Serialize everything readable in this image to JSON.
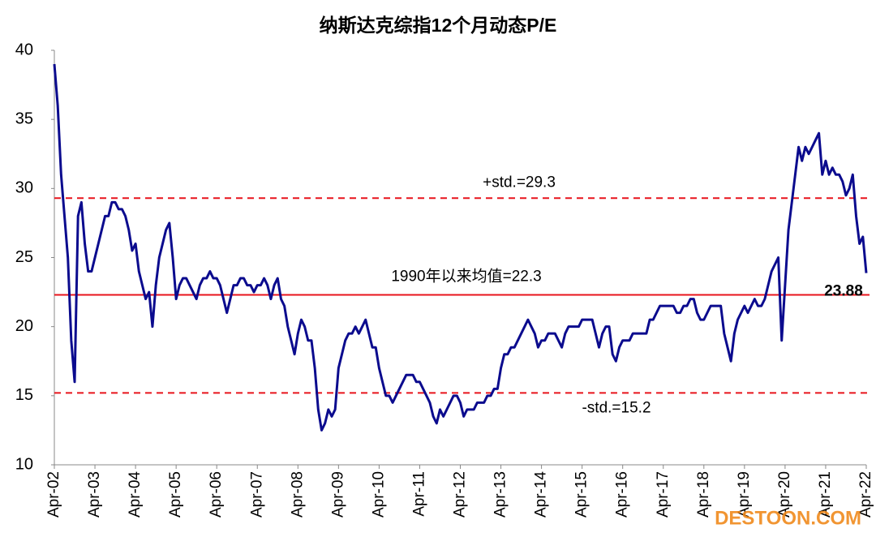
{
  "chart_data": {
    "type": "line",
    "title": "纳斯达克综指12个月动态P/E",
    "categories": [
      "Apr-02",
      null,
      null,
      null,
      null,
      null,
      null,
      null,
      null,
      null,
      null,
      null,
      "Apr-03",
      null,
      null,
      null,
      null,
      null,
      null,
      null,
      null,
      null,
      null,
      null,
      "Apr-04",
      null,
      null,
      null,
      null,
      null,
      null,
      null,
      null,
      null,
      null,
      null,
      "Apr-05",
      null,
      null,
      null,
      null,
      null,
      null,
      null,
      null,
      null,
      null,
      null,
      "Apr-06",
      null,
      null,
      null,
      null,
      null,
      null,
      null,
      null,
      null,
      null,
      null,
      "Apr-07",
      null,
      null,
      null,
      null,
      null,
      null,
      null,
      null,
      null,
      null,
      null,
      "Apr-08",
      null,
      null,
      null,
      null,
      null,
      null,
      null,
      null,
      null,
      null,
      null,
      "Apr-09",
      null,
      null,
      null,
      null,
      null,
      null,
      null,
      null,
      null,
      null,
      null,
      "Apr-10",
      null,
      null,
      null,
      null,
      null,
      null,
      null,
      null,
      null,
      null,
      null,
      "Apr-11",
      null,
      null,
      null,
      null,
      null,
      null,
      null,
      null,
      null,
      null,
      null,
      "Apr-12",
      null,
      null,
      null,
      null,
      null,
      null,
      null,
      null,
      null,
      null,
      null,
      "Apr-13",
      null,
      null,
      null,
      null,
      null,
      null,
      null,
      null,
      null,
      null,
      null,
      "Apr-14",
      null,
      null,
      null,
      null,
      null,
      null,
      null,
      null,
      null,
      null,
      null,
      "Apr-15",
      null,
      null,
      null,
      null,
      null,
      null,
      null,
      null,
      null,
      null,
      null,
      "Apr-16",
      null,
      null,
      null,
      null,
      null,
      null,
      null,
      null,
      null,
      null,
      null,
      "Apr-17",
      null,
      null,
      null,
      null,
      null,
      null,
      null,
      null,
      null,
      null,
      null,
      "Apr-18",
      null,
      null,
      null,
      null,
      null,
      null,
      null,
      null,
      null,
      null,
      null,
      "Apr-19",
      null,
      null,
      null,
      null,
      null,
      null,
      null,
      null,
      null,
      null,
      null,
      "Apr-20",
      null,
      null,
      null,
      null,
      null,
      null,
      null,
      null,
      null,
      null,
      null,
      "Apr-21",
      null,
      null,
      null,
      null,
      null,
      null,
      null,
      null,
      null,
      null,
      null,
      "Apr-22"
    ],
    "series": [
      {
        "name": "P/E",
        "color": "#0b0b8e",
        "values": [
          39,
          36,
          31,
          28,
          25,
          19,
          16,
          28,
          29,
          26,
          24,
          24,
          25,
          26,
          27,
          28,
          28,
          29,
          29,
          28.5,
          28.5,
          28,
          27,
          25.5,
          26,
          24,
          23,
          22,
          22.5,
          20,
          23,
          25,
          26,
          27,
          27.5,
          25,
          22,
          23,
          23.5,
          23.5,
          23,
          22.5,
          22,
          23,
          23.5,
          23.5,
          24,
          23.5,
          23.5,
          23,
          22,
          21,
          22,
          23,
          23,
          23.5,
          23.5,
          23,
          23,
          22.5,
          23,
          23,
          23.5,
          23,
          22,
          23,
          23.5,
          22,
          21.5,
          20,
          19,
          18,
          19.5,
          20.5,
          20,
          19,
          19,
          17,
          14,
          12.5,
          13,
          14,
          13.5,
          14,
          17,
          18,
          19,
          19.5,
          19.5,
          20,
          19.5,
          20,
          20.5,
          19.5,
          18.5,
          18.5,
          17,
          16,
          15,
          15,
          14.5,
          15,
          15.5,
          16,
          16.5,
          16.5,
          16.5,
          16,
          16,
          15.5,
          15,
          14.5,
          13.5,
          13,
          14,
          13.5,
          14,
          14.5,
          15,
          15,
          14.5,
          13.5,
          14,
          14,
          14,
          14.5,
          14.5,
          14.5,
          15,
          15,
          15.5,
          15.5,
          17,
          18,
          18,
          18.5,
          18.5,
          19,
          19.5,
          20,
          20.5,
          20,
          19.5,
          18.5,
          19,
          19,
          19.5,
          19.5,
          19.5,
          19,
          18.5,
          19.5,
          20,
          20,
          20,
          20,
          20.5,
          20.5,
          20.5,
          20.5,
          19.5,
          18.5,
          19.5,
          20,
          20,
          18,
          17.5,
          18.5,
          19,
          19,
          19,
          19.5,
          19.5,
          19.5,
          19.5,
          19.5,
          20.5,
          20.5,
          21,
          21.5,
          21.5,
          21.5,
          21.5,
          21.5,
          21,
          21,
          21.5,
          21.5,
          22,
          22,
          21,
          20.5,
          20.5,
          21,
          21.5,
          21.5,
          21.5,
          21.5,
          19.5,
          18.5,
          17.5,
          19.5,
          20.5,
          21,
          21.5,
          21,
          21.5,
          22,
          21.5,
          21.5,
          22,
          23,
          24,
          24.5,
          25,
          19,
          23,
          27,
          29,
          31,
          33,
          32,
          33,
          32.5,
          33,
          33.5,
          34,
          31,
          32,
          31,
          31.5,
          31,
          31,
          30.5,
          29.5,
          30,
          31,
          28,
          26,
          26.5,
          23.88
        ]
      }
    ],
    "reference_lines": [
      {
        "value": 29.3,
        "label": "+std.=29.3",
        "style": "dashed",
        "color": "#e8141c"
      },
      {
        "value": 22.3,
        "label": "1990年以来均值=22.3",
        "style": "solid",
        "color": "#e8141c"
      },
      {
        "value": 15.2,
        "label": "-std.=15.2",
        "style": "dashed",
        "color": "#e8141c"
      }
    ],
    "ylim": [
      10,
      40
    ],
    "yticks": [
      10,
      15,
      20,
      25,
      30,
      35,
      40
    ],
    "grid": false,
    "watermark": "DESTOON.COM"
  }
}
